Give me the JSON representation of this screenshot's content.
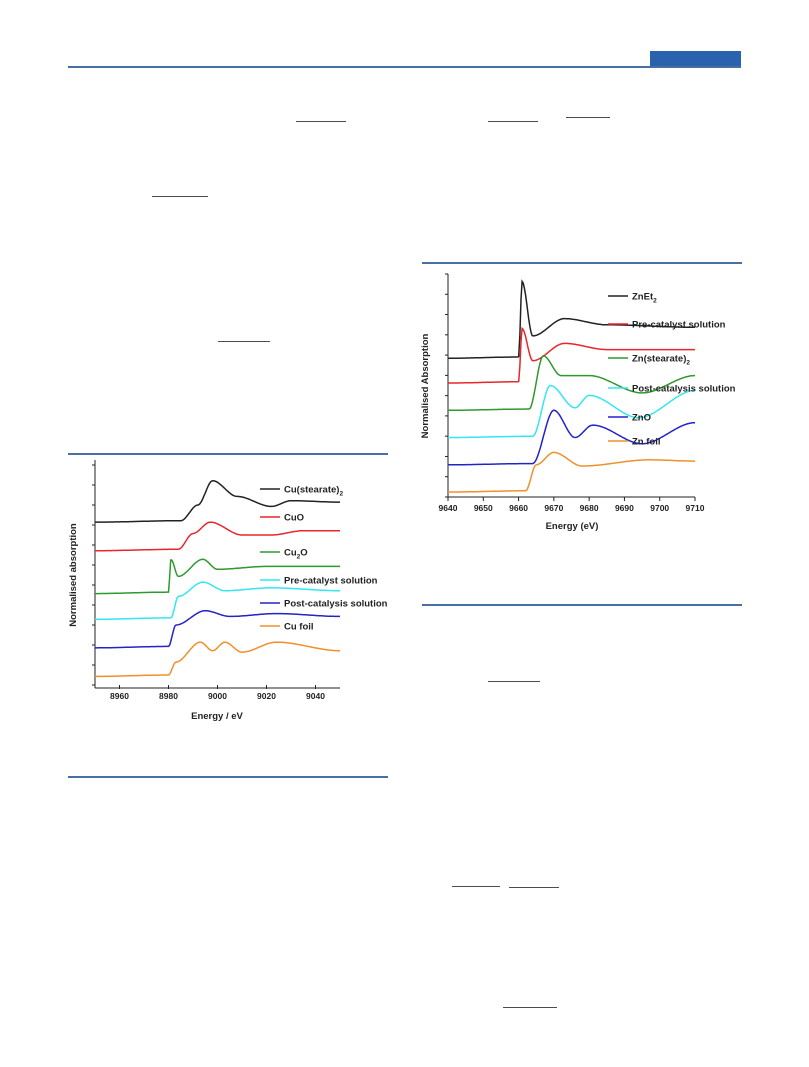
{
  "colors": {
    "rule": "#4a6fa5",
    "header_block": "#2a62ad",
    "black": "#222222",
    "red": "#e8262b",
    "green": "#2e9a2e",
    "cyan": "#33e6f0",
    "blue": "#2323c8",
    "orange": "#f0902a"
  },
  "chart_data": [
    {
      "type": "line",
      "title": "",
      "xlabel": "Energy / eV",
      "ylabel": "Normalised absorption",
      "xlim": [
        8950,
        9050
      ],
      "xticks": [
        8960,
        8980,
        9000,
        9020,
        9040
      ],
      "grid": false,
      "legend_position": "right (beside each trace)",
      "series": [
        {
          "name": "Cu(stearate)",
          "name_sub": "2",
          "color": "black",
          "offset": 6.0,
          "edge": 8985,
          "peak": [
            [
              8992,
              0.6
            ],
            [
              8998,
              1.45
            ],
            [
              9008,
              0.9
            ],
            [
              9022,
              0.55
            ],
            [
              9030,
              0.75
            ],
            [
              9050,
              0.7
            ]
          ]
        },
        {
          "name": "CuO",
          "color": "red",
          "offset": 5.0,
          "edge": 8984,
          "peak": [
            [
              8990,
              0.6
            ],
            [
              8997,
              1.0
            ],
            [
              9010,
              0.55
            ],
            [
              9022,
              0.55
            ],
            [
              9035,
              0.7
            ],
            [
              9050,
              0.7
            ]
          ]
        },
        {
          "name": "Cu",
          "name_sub": "2",
          "name_suffix": "O",
          "color": "green",
          "offset": 3.5,
          "edge": 8980,
          "peak": [
            [
              8981,
              1.2
            ],
            [
              8984,
              0.6
            ],
            [
              8994,
              1.2
            ],
            [
              9000,
              0.85
            ],
            [
              9020,
              0.95
            ],
            [
              9050,
              0.95
            ]
          ]
        },
        {
          "name": "Pre-catalyst solution",
          "color": "cyan",
          "offset": 2.6,
          "edge": 8981,
          "peak": [
            [
              8984,
              0.8
            ],
            [
              8994,
              1.3
            ],
            [
              9003,
              1.0
            ],
            [
              9022,
              1.1
            ],
            [
              9050,
              1.0
            ]
          ]
        },
        {
          "name": "Post-catalysis solution",
          "color": "blue",
          "offset": 1.6,
          "edge": 8980,
          "peak": [
            [
              8983,
              0.8
            ],
            [
              8995,
              1.3
            ],
            [
              9005,
              1.1
            ],
            [
              9024,
              1.2
            ],
            [
              9050,
              1.1
            ]
          ]
        },
        {
          "name": "Cu foil",
          "color": "orange",
          "offset": 0.6,
          "edge": 8980,
          "peak": [
            [
              8983,
              0.5
            ],
            [
              8993,
              1.2
            ],
            [
              8998,
              0.9
            ],
            [
              9003,
              1.2
            ],
            [
              9010,
              0.85
            ],
            [
              9024,
              1.2
            ],
            [
              9050,
              0.9
            ]
          ]
        }
      ]
    },
    {
      "type": "line",
      "title": "",
      "xlabel": "Energy (eV)",
      "ylabel": "Normalised Absorption",
      "xlim": [
        9640,
        9710
      ],
      "xticks": [
        9640,
        9650,
        9660,
        9670,
        9680,
        9690,
        9700,
        9710
      ],
      "grid": false,
      "legend_position": "right (beside each trace)",
      "series": [
        {
          "name": "ZnEt",
          "name_sub": "2",
          "color": "black",
          "offset": 5.6,
          "edge": 9660,
          "peak": [
            [
              9661,
              3.1
            ],
            [
              9664,
              0.9
            ],
            [
              9673,
              1.6
            ],
            [
              9685,
              1.35
            ],
            [
              9710,
              1.25
            ]
          ]
        },
        {
          "name": "Pre-catalyst solution",
          "color": "red",
          "offset": 4.6,
          "edge": 9660,
          "peak": [
            [
              9661,
              2.2
            ],
            [
              9664,
              0.9
            ],
            [
              9673,
              1.6
            ],
            [
              9685,
              1.35
            ],
            [
              9710,
              1.35
            ]
          ]
        },
        {
          "name": "Zn(stearate)",
          "name_sub": "2",
          "color": "green",
          "offset": 3.5,
          "edge": 9663,
          "peak": [
            [
              9667,
              2.2
            ],
            [
              9672,
              1.4
            ],
            [
              9680,
              1.4
            ],
            [
              9695,
              0.7
            ],
            [
              9710,
              1.4
            ]
          ]
        },
        {
          "name": "Post-catalysis solution",
          "color": "cyan",
          "offset": 2.4,
          "edge": 9664,
          "peak": [
            [
              9669,
              2.1
            ],
            [
              9676,
              1.2
            ],
            [
              9680,
              1.7
            ],
            [
              9694,
              0.8
            ],
            [
              9710,
              1.9
            ]
          ]
        },
        {
          "name": "ZnO",
          "color": "blue",
          "offset": 1.3,
          "edge": 9664,
          "peak": [
            [
              9670,
              2.2
            ],
            [
              9676,
              1.1
            ],
            [
              9681,
              1.6
            ],
            [
              9695,
              0.85
            ],
            [
              9710,
              1.7
            ]
          ]
        },
        {
          "name": "Zn foil",
          "color": "orange",
          "offset": 0.2,
          "edge": 9662,
          "peak": [
            [
              9665,
              1.1
            ],
            [
              9670,
              1.6
            ],
            [
              9678,
              1.05
            ],
            [
              9697,
              1.3
            ],
            [
              9710,
              1.25
            ]
          ]
        }
      ]
    }
  ]
}
